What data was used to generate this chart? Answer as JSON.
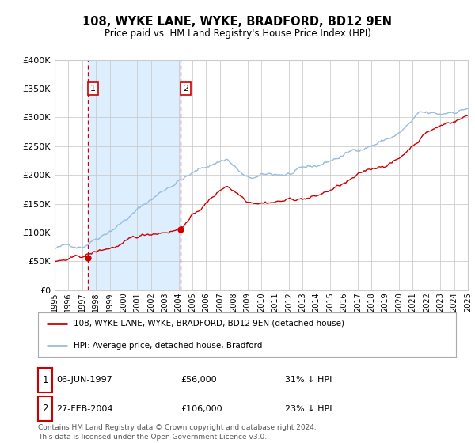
{
  "title": "108, WYKE LANE, WYKE, BRADFORD, BD12 9EN",
  "subtitle": "Price paid vs. HM Land Registry's House Price Index (HPI)",
  "x_start_year": 1995,
  "x_end_year": 2025,
  "y_min": 0,
  "y_max": 400000,
  "y_ticks": [
    0,
    50000,
    100000,
    150000,
    200000,
    250000,
    300000,
    350000,
    400000
  ],
  "y_tick_labels": [
    "£0",
    "£50K",
    "£100K",
    "£150K",
    "£200K",
    "£250K",
    "£300K",
    "£350K",
    "£400K"
  ],
  "hpi_color": "#99bbdd",
  "price_color": "#cc0000",
  "bg_color": "#ffffff",
  "plot_bg_color": "#ffffff",
  "shade_color": "#ddeeff",
  "grid_color": "#cccccc",
  "purchase1_year": 1997.44,
  "purchase1_price": 56000,
  "purchase1_label": "06-JUN-1997",
  "purchase1_amount": "£56,000",
  "purchase1_pct": "31% ↓ HPI",
  "purchase2_year": 2004.16,
  "purchase2_price": 106000,
  "purchase2_label": "27-FEB-2004",
  "purchase2_amount": "£106,000",
  "purchase2_pct": "23% ↓ HPI",
  "legend_line1": "108, WYKE LANE, WYKE, BRADFORD, BD12 9EN (detached house)",
  "legend_line2": "HPI: Average price, detached house, Bradford",
  "footer": "Contains HM Land Registry data © Crown copyright and database right 2024.\nThis data is licensed under the Open Government Licence v3.0.",
  "x_ticks": [
    1995,
    1996,
    1997,
    1998,
    1999,
    2000,
    2001,
    2002,
    2003,
    2004,
    2005,
    2006,
    2007,
    2008,
    2009,
    2010,
    2011,
    2012,
    2013,
    2014,
    2015,
    2016,
    2017,
    2018,
    2019,
    2020,
    2021,
    2022,
    2023,
    2024,
    2025
  ]
}
